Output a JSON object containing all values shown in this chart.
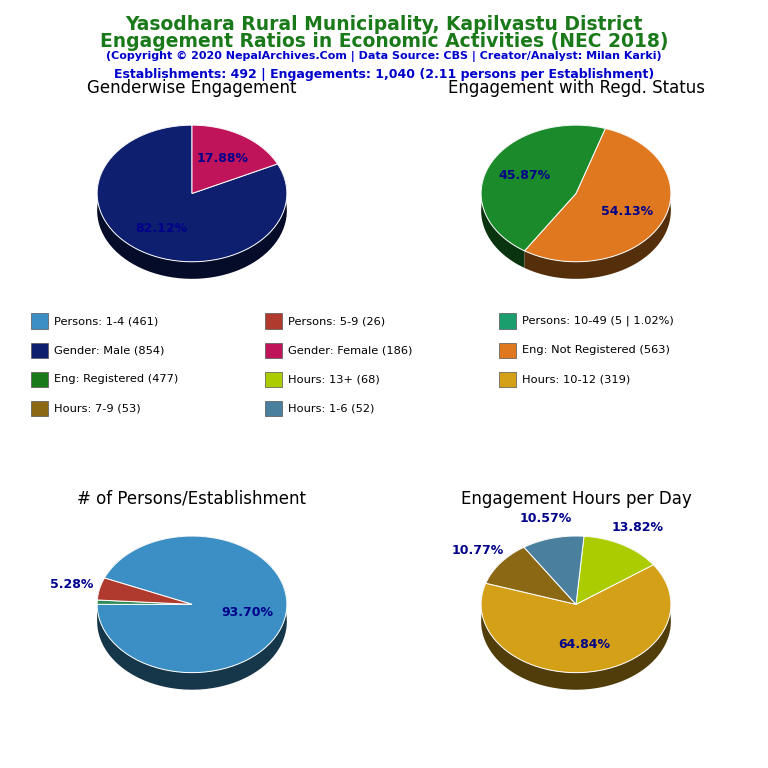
{
  "title_line1": "Yasodhara Rural Municipality, Kapilvastu District",
  "title_line2": "Engagement Ratios in Economic Activities (NEC 2018)",
  "subtitle": "(Copyright © 2020 NepalArchives.Com | Data Source: CBS | Creator/Analyst: Milan Karki)",
  "stats_line": "Establishments: 492 | Engagements: 1,040 (2.11 persons per Establishment)",
  "title_color": "#1a7a1a",
  "subtitle_color": "#0000cc",
  "stats_color": "#0000cc",
  "pie1_title": "Genderwise Engagement",
  "pie1_values": [
    82.12,
    17.88
  ],
  "pie1_colors": [
    "#0d1f6e",
    "#c0145a"
  ],
  "pie1_labels": [
    "82.12%",
    "17.88%"
  ],
  "pie1_label_positions": [
    "outside_left",
    "outside_right"
  ],
  "pie1_startangle": 90,
  "pie2_title": "Engagement with Regd. Status",
  "pie2_values": [
    45.87,
    54.13
  ],
  "pie2_colors": [
    "#1a8a2a",
    "#e07820"
  ],
  "pie2_labels": [
    "45.87%",
    "54.13%"
  ],
  "pie2_startangle": 72,
  "pie3_title": "# of Persons/Establishment",
  "pie3_values": [
    93.7,
    5.28,
    1.02
  ],
  "pie3_colors": [
    "#3b8fc4",
    "#b03a2e",
    "#2e8b57"
  ],
  "pie3_labels": [
    "93.70%",
    "5.28%",
    ""
  ],
  "pie3_startangle": 180,
  "pie4_title": "Engagement Hours per Day",
  "pie4_values": [
    64.84,
    13.82,
    10.57,
    10.77
  ],
  "pie4_colors": [
    "#d4a017",
    "#aacc00",
    "#4a7f9e",
    "#8b6914"
  ],
  "pie4_labels": [
    "64.84%",
    "13.82%",
    "10.57%",
    "10.77%"
  ],
  "pie4_startangle": 162,
  "legend_items": [
    {
      "label": "Persons: 1-4 (461)",
      "color": "#3b8fc4"
    },
    {
      "label": "Persons: 5-9 (26)",
      "color": "#b03a2e"
    },
    {
      "label": "Persons: 10-49 (5 | 1.02%)",
      "color": "#1a9e6e"
    },
    {
      "label": "Gender: Male (854)",
      "color": "#0d1f6e"
    },
    {
      "label": "Gender: Female (186)",
      "color": "#c0145a"
    },
    {
      "label": "Eng: Not Registered (563)",
      "color": "#e07820"
    },
    {
      "label": "Eng: Registered (477)",
      "color": "#1a7a1a"
    },
    {
      "label": "Hours: 13+ (68)",
      "color": "#aacc00"
    },
    {
      "label": "Hours: 10-12 (319)",
      "color": "#d4a017"
    },
    {
      "label": "Hours: 7-9 (53)",
      "color": "#8b6914"
    },
    {
      "label": "Hours: 1-6 (52)",
      "color": "#4a7f9e"
    }
  ],
  "label_color": "#00008b",
  "chart_title_fontsize": 12,
  "label_fontsize": 9
}
